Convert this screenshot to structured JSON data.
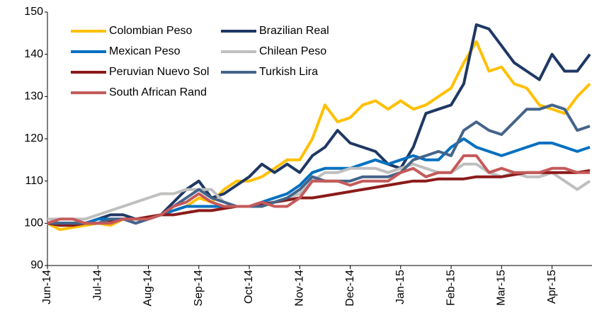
{
  "chart_data": {
    "type": "line",
    "categories": [
      "Jun-14",
      null,
      null,
      null,
      "Jul-14",
      null,
      null,
      null,
      "Aug-14",
      null,
      null,
      null,
      "Sep-14",
      null,
      null,
      null,
      "Oct-14",
      null,
      null,
      null,
      "Nov-14",
      null,
      null,
      null,
      "Dec-14",
      null,
      null,
      null,
      "Jan-15",
      null,
      null,
      null,
      "Feb-15",
      null,
      null,
      null,
      "Mar-15",
      null,
      null,
      null,
      "Apr-15",
      null,
      null,
      null
    ],
    "series": [
      {
        "name": "Colombian Peso",
        "color": "#FFC000",
        "values": [
          100,
          98.5,
          99,
          99.5,
          100,
          99.5,
          101,
          101,
          101,
          102,
          103,
          104,
          106,
          105,
          108,
          110,
          110,
          111,
          113,
          115,
          115,
          120,
          128,
          124,
          125,
          128,
          129,
          127,
          129,
          127,
          128,
          130,
          132,
          138,
          143,
          136,
          137,
          133,
          132,
          128,
          127,
          126,
          130,
          133
        ]
      },
      {
        "name": "Brazilian Real",
        "color": "#1F3864",
        "values": [
          100,
          100,
          100,
          100,
          101,
          102,
          102,
          101,
          101,
          102,
          105,
          108,
          110,
          106,
          107,
          109,
          111,
          114,
          112,
          114,
          112,
          116,
          118,
          122,
          119,
          118,
          117,
          114,
          113,
          118,
          126,
          127,
          128,
          133,
          147,
          146,
          142,
          138,
          136,
          134,
          140,
          136,
          136,
          140
        ]
      },
      {
        "name": "Mexican Peso",
        "color": "#0070C0",
        "values": [
          100,
          100,
          100,
          100,
          101,
          101,
          101,
          101,
          101,
          102,
          103,
          104,
          104,
          104,
          104,
          104,
          104,
          105,
          106,
          107,
          109,
          112,
          113,
          113,
          113,
          114,
          115,
          114,
          115,
          116,
          115,
          115,
          118,
          120,
          118,
          117,
          116,
          117,
          118,
          119,
          119,
          118,
          117,
          118
        ]
      },
      {
        "name": "Chilean Peso",
        "color": "#BFBFBF",
        "values": [
          101,
          101,
          101,
          101,
          102,
          103,
          104,
          105,
          106,
          107,
          107,
          108,
          108,
          108,
          105,
          104,
          104,
          104,
          105,
          106,
          107,
          110,
          112,
          112,
          113,
          113,
          113,
          112,
          113,
          114,
          113,
          112,
          112,
          114,
          114,
          112,
          111,
          112,
          111,
          111,
          112,
          110,
          108,
          110
        ]
      },
      {
        "name": "Peruvian Nuevo Sol",
        "color": "#8B1A1A",
        "values": [
          100,
          99.5,
          99.5,
          100,
          100,
          100.5,
          101,
          101,
          101.5,
          102,
          102,
          102.5,
          103,
          103,
          103.5,
          104,
          104,
          104.5,
          105,
          105.5,
          106,
          106,
          106.5,
          107,
          107.5,
          108,
          108.5,
          109,
          109.5,
          110,
          110,
          110.5,
          110.5,
          110.5,
          111,
          111,
          111,
          111.5,
          112,
          112,
          112,
          112,
          112,
          112.5
        ]
      },
      {
        "name": "Turkish Lira",
        "color": "#44648A",
        "values": [
          100,
          100,
          100,
          100,
          100,
          101,
          101,
          100,
          101,
          102,
          104,
          106,
          108,
          106,
          105,
          104,
          104,
          104,
          105,
          106,
          108,
          111,
          110,
          110,
          110,
          111,
          111,
          111,
          112,
          115,
          116,
          117,
          116,
          122,
          124,
          122,
          121,
          124,
          127,
          127,
          128,
          127,
          122,
          123
        ]
      },
      {
        "name": "South African Rand",
        "color": "#C55A5A",
        "values": [
          100,
          101,
          101,
          100,
          100,
          100,
          101,
          101,
          101,
          102,
          104,
          105,
          107,
          105,
          104,
          104,
          104,
          105,
          104,
          104,
          106,
          110,
          110,
          110,
          109,
          110,
          110,
          110,
          112,
          113,
          111,
          112,
          112,
          116,
          116,
          112,
          113,
          112,
          112,
          112,
          113,
          113,
          112,
          112
        ]
      }
    ],
    "ylim": [
      90,
      150
    ],
    "yticks": [
      90,
      100,
      110,
      120,
      130,
      140,
      150
    ],
    "grid": false
  }
}
